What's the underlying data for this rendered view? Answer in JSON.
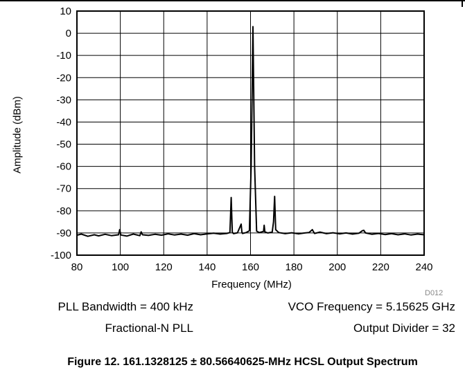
{
  "chart_data": {
    "type": "line",
    "title": "",
    "xlabel": "Frequency (MHz)",
    "ylabel": "Amplitude (dBm)",
    "xlim": [
      80,
      240
    ],
    "ylim": [
      -100,
      10
    ],
    "xticks": [
      "80",
      "100",
      "120",
      "140",
      "160",
      "180",
      "200",
      "220",
      "240"
    ],
    "yticks": [
      "10",
      "0",
      "-10",
      "-20",
      "-30",
      "-40",
      "-50",
      "-60",
      "-70",
      "-80",
      "-90",
      "-100"
    ],
    "grid": true,
    "series": [
      {
        "color": "#000000",
        "x": [
          80,
          82,
          85,
          88,
          90,
          93,
          96,
          99.2,
          99.7,
          100.2,
          103,
          106,
          109,
          109.6,
          110.2,
          113,
          116,
          119,
          122,
          125,
          128,
          131,
          134,
          137,
          140,
          143,
          146,
          149,
          150.5,
          151.1,
          151.6,
          152.2,
          154,
          155.7,
          156,
          156.3,
          158,
          159.5,
          160.3,
          161.13,
          161.9,
          162.8,
          164,
          166,
          166.3,
          166.6,
          168,
          170,
          170.6,
          171.1,
          171.6,
          173,
          176,
          179,
          182,
          185,
          187,
          188.5,
          189,
          189.5,
          192,
          195,
          198,
          201,
          204,
          207,
          210,
          211.5,
          212.2,
          213,
          216,
          219,
          222,
          225,
          228,
          231,
          234,
          237,
          240
        ],
        "y": [
          -91,
          -90.5,
          -91.5,
          -90.8,
          -91.3,
          -90.6,
          -91.2,
          -90.8,
          -88.5,
          -90.9,
          -91.4,
          -90.5,
          -91.2,
          -89.5,
          -90.8,
          -91.1,
          -90.6,
          -91.0,
          -90.4,
          -90.9,
          -90.5,
          -91.0,
          -90.3,
          -90.8,
          -90.4,
          -90.1,
          -90.5,
          -90.2,
          -89.8,
          -74,
          -89.7,
          -90.3,
          -89.9,
          -86.0,
          -89.5,
          -90.2,
          -89.8,
          -89.0,
          -60,
          3,
          -60,
          -89.2,
          -89.8,
          -89.3,
          -86.5,
          -89.5,
          -90.0,
          -89.6,
          -85,
          -73.5,
          -88.5,
          -89.8,
          -90.3,
          -89.9,
          -90.4,
          -90.0,
          -89.8,
          -88.5,
          -89.4,
          -90.2,
          -89.6,
          -90.3,
          -89.9,
          -90.4,
          -90.0,
          -90.5,
          -90.1,
          -89.0,
          -88.8,
          -90.0,
          -90.6,
          -90.2,
          -90.7,
          -90.3,
          -90.8,
          -90.4,
          -90.9,
          -90.5,
          -90.8
        ]
      }
    ]
  },
  "figure_id": "D012",
  "notes": {
    "pll_bandwidth": "PLL Bandwidth = 400 kHz",
    "pll_mode": "Fractional-N PLL",
    "vco_frequency": "VCO Frequency = 5.15625 GHz",
    "output_divider": "Output Divider = 32"
  },
  "caption": "Figure 12. 161.1328125 ± 80.56640625-MHz HCSL Output Spectrum"
}
